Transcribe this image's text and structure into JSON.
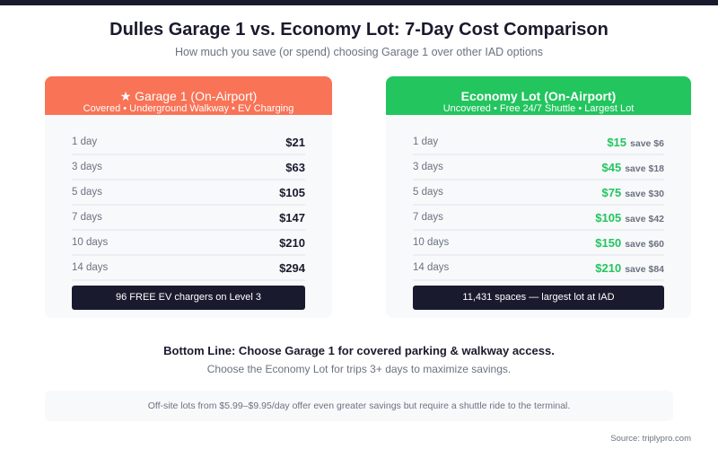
{
  "title": "Dulles Garage 1 vs. Economy Lot: 7-Day Cost Comparison",
  "subtitle": "How much you save (or spend) choosing Garage 1 over other IAD options",
  "colors": {
    "garage": "#f97356",
    "economy": "#22c55e",
    "dark": "#1a1a2e"
  },
  "garage": {
    "icon": "star-icon",
    "star": "★",
    "name": "Garage 1 (On-Airport)",
    "features": "Covered • Underground Walkway • EV Charging",
    "rows": [
      {
        "label": "1 day",
        "price": "$21"
      },
      {
        "label": "3 days",
        "price": "$63"
      },
      {
        "label": "5 days",
        "price": "$105"
      },
      {
        "label": "7 days",
        "price": "$147"
      },
      {
        "label": "10 days",
        "price": "$210"
      },
      {
        "label": "14 days",
        "price": "$294"
      }
    ],
    "footer": "96 FREE EV chargers on Level 3"
  },
  "economy": {
    "name": "Economy Lot (On-Airport)",
    "features": "Uncovered • Free 24/7 Shuttle • Largest Lot",
    "rows": [
      {
        "label": "1 day",
        "price": "$15",
        "save": "save $6"
      },
      {
        "label": "3 days",
        "price": "$45",
        "save": "save $18"
      },
      {
        "label": "5 days",
        "price": "$75",
        "save": "save $30"
      },
      {
        "label": "7 days",
        "price": "$105",
        "save": "save $42"
      },
      {
        "label": "10 days",
        "price": "$150",
        "save": "save $60"
      },
      {
        "label": "14 days",
        "price": "$210",
        "save": "save $84"
      }
    ],
    "footer": "11,431 spaces — largest lot at IAD"
  },
  "bottom_line": "Bottom Line: Choose Garage 1 for covered parking & walkway access.",
  "bottom_sub": "Choose the Economy Lot for trips 3+ days to maximize savings.",
  "note": "Off-site lots from $5.99–$9.95/day offer even greater savings but require a shuttle ride to the terminal.",
  "source": "Source: triplypro.com"
}
